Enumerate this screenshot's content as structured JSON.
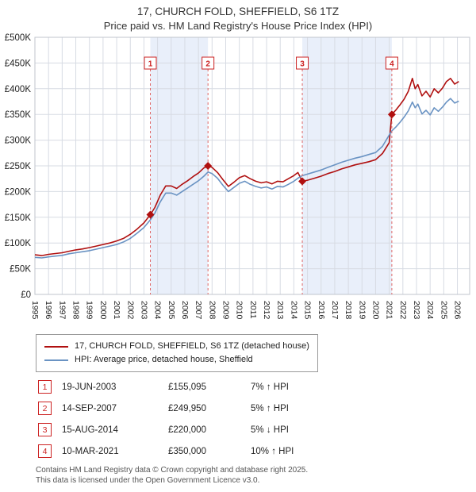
{
  "title": {
    "line1": "17, CHURCH FOLD, SHEFFIELD, S6 1TZ",
    "line2": "Price paid vs. HM Land Registry's House Price Index (HPI)"
  },
  "legend": {
    "series1": "17, CHURCH FOLD, SHEFFIELD, S6 1TZ (detached house)",
    "series2": "HPI: Average price, detached house, Sheffield"
  },
  "transactions": [
    {
      "num": "1",
      "date": "19-JUN-2003",
      "price": "£155,095",
      "delta": "7% ↑ HPI"
    },
    {
      "num": "2",
      "date": "14-SEP-2007",
      "price": "£249,950",
      "delta": "5% ↑ HPI"
    },
    {
      "num": "3",
      "date": "15-AUG-2014",
      "price": "£220,000",
      "delta": "5% ↓ HPI"
    },
    {
      "num": "4",
      "date": "10-MAR-2021",
      "price": "£350,000",
      "delta": "10% ↑ HPI"
    }
  ],
  "footer": {
    "line1": "Contains HM Land Registry data © Crown copyright and database right 2025.",
    "line2": "This data is licensed under the Open Government Licence v3.0."
  },
  "chart_data": {
    "type": "line",
    "title": "17, CHURCH FOLD, SHEFFIELD, S6 1TZ",
    "subtitle": "Price paid vs. HM Land Registry's House Price Index (HPI)",
    "legend_position": "bottom",
    "grid": true,
    "colors": {
      "band": "#e9effa",
      "grid": "#d7dbe3",
      "dash": "#e06666",
      "axis": "#c0c5cd",
      "marker": "#b01010",
      "sale_box": "#cc2222"
    },
    "x_axis": {
      "range": [
        1995,
        2026.9
      ],
      "ticks": [
        1995,
        1996,
        1997,
        1998,
        1999,
        2000,
        2001,
        2002,
        2003,
        2004,
        2005,
        2006,
        2007,
        2008,
        2009,
        2010,
        2011,
        2012,
        2013,
        2014,
        2015,
        2016,
        2017,
        2018,
        2019,
        2020,
        2021,
        2022,
        2023,
        2024,
        2025,
        2026
      ]
    },
    "y_axis": {
      "range": [
        0,
        500000
      ],
      "tick_values": [
        0,
        50000,
        100000,
        150000,
        200000,
        250000,
        300000,
        350000,
        400000,
        450000,
        500000
      ],
      "ticks": [
        "£0",
        "£50K",
        "£100K",
        "£150K",
        "£200K",
        "£250K",
        "£300K",
        "£350K",
        "£400K",
        "£450K",
        "£500K"
      ]
    },
    "bands": [
      [
        2003.47,
        2007.7
      ],
      [
        2014.62,
        2021.19
      ]
    ],
    "sales": [
      {
        "n": "1",
        "x": 2003.47,
        "y": 155095,
        "date": "19-JUN-2003",
        "price": 155095,
        "hpi_delta": "+7%"
      },
      {
        "n": "2",
        "x": 2007.7,
        "y": 249950,
        "date": "14-SEP-2007",
        "price": 249950,
        "hpi_delta": "+5%"
      },
      {
        "n": "3",
        "x": 2014.62,
        "y": 220000,
        "date": "15-AUG-2014",
        "price": 220000,
        "hpi_delta": "-5%"
      },
      {
        "n": "4",
        "x": 2021.19,
        "y": 350000,
        "date": "10-MAR-2021",
        "price": 350000,
        "hpi_delta": "+10%"
      }
    ],
    "series": [
      {
        "name": "17, CHURCH FOLD, SHEFFIELD, S6 1TZ (detached house)",
        "color": "#b01010",
        "points": [
          [
            1995.0,
            77000
          ],
          [
            1995.5,
            75500
          ],
          [
            1996.0,
            78000
          ],
          [
            1996.5,
            79500
          ],
          [
            1997.0,
            81000
          ],
          [
            1997.5,
            84000
          ],
          [
            1998.0,
            86500
          ],
          [
            1998.5,
            88500
          ],
          [
            1999.0,
            91000
          ],
          [
            1999.5,
            94000
          ],
          [
            2000.0,
            97000
          ],
          [
            2000.5,
            100000
          ],
          [
            2001.0,
            104000
          ],
          [
            2001.5,
            109000
          ],
          [
            2002.0,
            117000
          ],
          [
            2002.5,
            127000
          ],
          [
            2003.0,
            139000
          ],
          [
            2003.47,
            155095
          ],
          [
            2003.8,
            169000
          ],
          [
            2004.2,
            193000
          ],
          [
            2004.6,
            211000
          ],
          [
            2005.0,
            211000
          ],
          [
            2005.4,
            206000
          ],
          [
            2005.8,
            214000
          ],
          [
            2006.2,
            221000
          ],
          [
            2006.6,
            229000
          ],
          [
            2007.0,
            236000
          ],
          [
            2007.4,
            246000
          ],
          [
            2007.7,
            249950
          ],
          [
            2008.0,
            247000
          ],
          [
            2008.4,
            237000
          ],
          [
            2008.8,
            223000
          ],
          [
            2009.2,
            210000
          ],
          [
            2009.6,
            218000
          ],
          [
            2010.0,
            227000
          ],
          [
            2010.4,
            231000
          ],
          [
            2010.8,
            225000
          ],
          [
            2011.2,
            220000
          ],
          [
            2011.6,
            217000
          ],
          [
            2012.0,
            219000
          ],
          [
            2012.4,
            215000
          ],
          [
            2012.8,
            220000
          ],
          [
            2013.2,
            219000
          ],
          [
            2013.6,
            225000
          ],
          [
            2014.0,
            231000
          ],
          [
            2014.3,
            237000
          ],
          [
            2014.62,
            220000
          ],
          [
            2015.0,
            222000
          ],
          [
            2015.5,
            226000
          ],
          [
            2016.0,
            230000
          ],
          [
            2016.5,
            235000
          ],
          [
            2017.0,
            239000
          ],
          [
            2017.5,
            244000
          ],
          [
            2018.0,
            248000
          ],
          [
            2018.5,
            252000
          ],
          [
            2019.0,
            255000
          ],
          [
            2019.5,
            258000
          ],
          [
            2020.0,
            262000
          ],
          [
            2020.5,
            274000
          ],
          [
            2021.0,
            295000
          ],
          [
            2021.19,
            350000
          ],
          [
            2021.5,
            359000
          ],
          [
            2021.8,
            369000
          ],
          [
            2022.1,
            380000
          ],
          [
            2022.4,
            395000
          ],
          [
            2022.7,
            420000
          ],
          [
            2022.9,
            400000
          ],
          [
            2023.1,
            408000
          ],
          [
            2023.4,
            386000
          ],
          [
            2023.7,
            395000
          ],
          [
            2024.0,
            384000
          ],
          [
            2024.3,
            400000
          ],
          [
            2024.6,
            392000
          ],
          [
            2024.9,
            401000
          ],
          [
            2025.2,
            414000
          ],
          [
            2025.5,
            420000
          ],
          [
            2025.8,
            409000
          ],
          [
            2026.1,
            414000
          ]
        ]
      },
      {
        "name": "HPI: Average price, detached house, Sheffield",
        "color": "#6a93c3",
        "points": [
          [
            1995.0,
            72000
          ],
          [
            1995.5,
            71000
          ],
          [
            1996.0,
            73000
          ],
          [
            1996.5,
            74500
          ],
          [
            1997.0,
            76000
          ],
          [
            1997.5,
            79000
          ],
          [
            1998.0,
            81000
          ],
          [
            1998.5,
            83000
          ],
          [
            1999.0,
            85000
          ],
          [
            1999.5,
            88000
          ],
          [
            2000.0,
            91000
          ],
          [
            2000.5,
            94000
          ],
          [
            2001.0,
            97000
          ],
          [
            2001.5,
            102000
          ],
          [
            2002.0,
            109000
          ],
          [
            2002.5,
            119000
          ],
          [
            2003.0,
            130000
          ],
          [
            2003.47,
            145000
          ],
          [
            2003.8,
            158000
          ],
          [
            2004.2,
            180000
          ],
          [
            2004.6,
            197000
          ],
          [
            2005.0,
            197000
          ],
          [
            2005.4,
            193000
          ],
          [
            2005.8,
            200000
          ],
          [
            2006.2,
            207000
          ],
          [
            2006.6,
            214000
          ],
          [
            2007.0,
            221000
          ],
          [
            2007.4,
            230000
          ],
          [
            2007.7,
            238000
          ],
          [
            2008.0,
            235000
          ],
          [
            2008.4,
            226000
          ],
          [
            2008.8,
            212000
          ],
          [
            2009.2,
            200000
          ],
          [
            2009.6,
            208000
          ],
          [
            2010.0,
            216000
          ],
          [
            2010.4,
            220000
          ],
          [
            2010.8,
            214000
          ],
          [
            2011.2,
            210000
          ],
          [
            2011.6,
            207000
          ],
          [
            2012.0,
            209000
          ],
          [
            2012.4,
            205000
          ],
          [
            2012.8,
            210000
          ],
          [
            2013.2,
            209000
          ],
          [
            2013.6,
            214000
          ],
          [
            2014.0,
            220000
          ],
          [
            2014.3,
            226000
          ],
          [
            2014.62,
            231000
          ],
          [
            2015.0,
            234000
          ],
          [
            2015.5,
            238000
          ],
          [
            2016.0,
            242000
          ],
          [
            2016.5,
            247000
          ],
          [
            2017.0,
            252000
          ],
          [
            2017.5,
            257000
          ],
          [
            2018.0,
            261000
          ],
          [
            2018.5,
            265000
          ],
          [
            2019.0,
            268000
          ],
          [
            2019.5,
            272000
          ],
          [
            2020.0,
            276000
          ],
          [
            2020.5,
            288000
          ],
          [
            2021.0,
            310000
          ],
          [
            2021.19,
            318000
          ],
          [
            2021.5,
            326000
          ],
          [
            2021.8,
            335000
          ],
          [
            2022.1,
            345000
          ],
          [
            2022.4,
            357000
          ],
          [
            2022.7,
            374000
          ],
          [
            2022.9,
            363000
          ],
          [
            2023.1,
            370000
          ],
          [
            2023.4,
            351000
          ],
          [
            2023.7,
            358000
          ],
          [
            2024.0,
            349000
          ],
          [
            2024.3,
            363000
          ],
          [
            2024.6,
            356000
          ],
          [
            2024.9,
            364000
          ],
          [
            2025.2,
            374000
          ],
          [
            2025.5,
            381000
          ],
          [
            2025.8,
            372000
          ],
          [
            2026.1,
            376000
          ]
        ]
      }
    ]
  }
}
